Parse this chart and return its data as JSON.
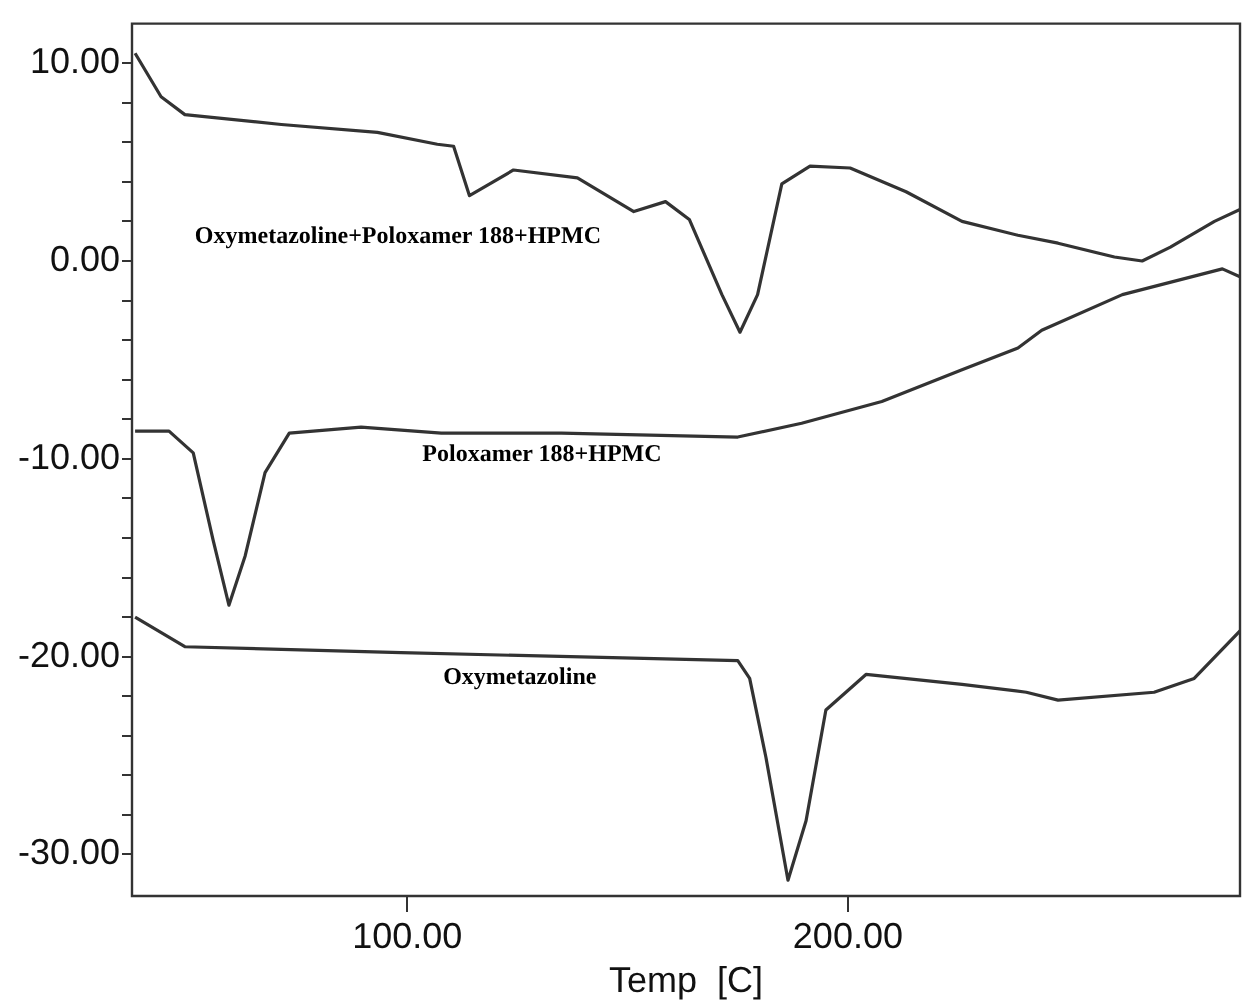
{
  "chart_data": {
    "type": "line",
    "xlabel": "Temp  [C]",
    "xlim": [
      37.5,
      289
    ],
    "ylim": [
      -32.1,
      12
    ],
    "xticks": [
      {
        "value": 100,
        "label": "100.00"
      },
      {
        "value": 200,
        "label": "200.00"
      }
    ],
    "yticks": [
      {
        "value": -30,
        "label": "-30.00"
      },
      {
        "value": -28,
        "label": null
      },
      {
        "value": -26,
        "label": null
      },
      {
        "value": -24,
        "label": null
      },
      {
        "value": -22,
        "label": null
      },
      {
        "value": -20,
        "label": "-20.00"
      },
      {
        "value": -18,
        "label": null
      },
      {
        "value": -16,
        "label": null
      },
      {
        "value": -14,
        "label": null
      },
      {
        "value": -12,
        "label": null
      },
      {
        "value": -10,
        "label": "-10.00"
      },
      {
        "value": -8,
        "label": null
      },
      {
        "value": -6,
        "label": null
      },
      {
        "value": -4,
        "label": null
      },
      {
        "value": -2,
        "label": null
      },
      {
        "value": 0,
        "label": "0.00"
      },
      {
        "value": 2,
        "label": null
      },
      {
        "value": 4,
        "label": null
      },
      {
        "value": 6,
        "label": null
      },
      {
        "value": 8,
        "label": null
      },
      {
        "value": 10,
        "label": "10.00"
      }
    ],
    "grid": false,
    "legend": false,
    "marker": "none",
    "line_style": "solid",
    "series": [
      {
        "name": "Oxymetazoline+Poloxamer 188+HPMC",
        "color": "#333333",
        "x": [
          38.2,
          44.1,
          49.5,
          71.4,
          93.2,
          106.8,
          110.5,
          114.1,
          124.1,
          138.6,
          151.4,
          158.6,
          164,
          171.4,
          175.5,
          179.5,
          185,
          191.4,
          200.5,
          213.2,
          225.9,
          238.6,
          247.7,
          260.5,
          266.8,
          273.2,
          283.2,
          289
        ],
        "values": [
          10.5,
          8.3,
          7.4,
          6.9,
          6.5,
          5.9,
          5.8,
          3.3,
          4.6,
          4.2,
          2.5,
          3.0,
          2.1,
          -1.7,
          -3.6,
          -1.7,
          3.9,
          4.8,
          4.7,
          3.5,
          2.0,
          1.3,
          0.9,
          0.2,
          0,
          0.7,
          2.0,
          2.6
        ]
      },
      {
        "name": "Poloxamer 188+HPMC",
        "color": "#333333",
        "x": [
          38.2,
          45.9,
          51.4,
          55.9,
          59.5,
          63.2,
          67.7,
          73.2,
          89.5,
          107.7,
          135,
          175,
          189.5,
          207.7,
          225.9,
          238.6,
          244,
          262.3,
          285,
          289
        ],
        "values": [
          -8.6,
          -8.6,
          -9.7,
          -14.1,
          -17.4,
          -14.9,
          -10.7,
          -8.7,
          -8.4,
          -8.7,
          -8.7,
          -8.9,
          -8.2,
          -7.1,
          -5.5,
          -4.4,
          -3.5,
          -1.7,
          -0.4,
          -0.8
        ]
      },
      {
        "name": "Oxymetazoline",
        "color": "#333333",
        "x": [
          38.2,
          49.5,
          98.6,
          175,
          177.7,
          181.4,
          186.4,
          190.5,
          195,
          204.1,
          225.9,
          240.5,
          247.7,
          269.5,
          278.6,
          289
        ],
        "values": [
          -18.0,
          -19.5,
          -19.8,
          -20.2,
          -21.1,
          -25.1,
          -31.3,
          -28.3,
          -22.7,
          -20.9,
          -21.4,
          -21.8,
          -22.2,
          -21.8,
          -21.1,
          -18.7
        ]
      }
    ]
  }
}
